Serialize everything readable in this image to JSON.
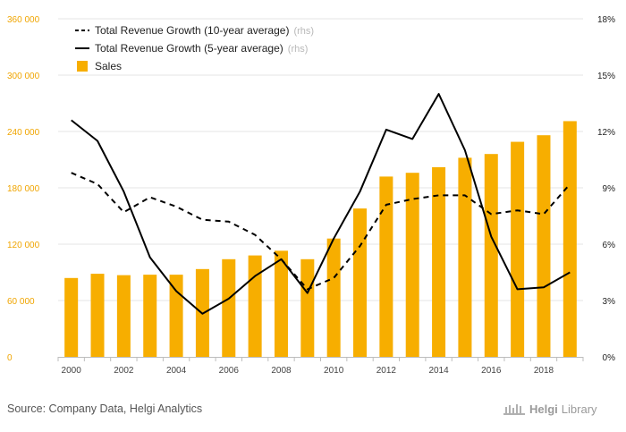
{
  "chart_data": {
    "type": "bar+line",
    "title": "",
    "categories": [
      "2000",
      "2001",
      "2002",
      "2003",
      "2004",
      "2005",
      "2006",
      "2007",
      "2008",
      "2009",
      "2010",
      "2011",
      "2012",
      "2013",
      "2014",
      "2015",
      "2016",
      "2017",
      "2018",
      "2019"
    ],
    "x_tick_labels": [
      "2000",
      "2002",
      "2004",
      "2006",
      "2008",
      "2010",
      "2012",
      "2014",
      "2016",
      "2018"
    ],
    "y_left": {
      "ylim": [
        0,
        360000
      ],
      "ticks": [
        "0",
        "60 000",
        "120 000",
        "180 000",
        "240 000",
        "300 000",
        "360 000"
      ],
      "tick_values": [
        0,
        60000,
        120000,
        180000,
        240000,
        300000,
        360000
      ]
    },
    "y_right": {
      "ylim": [
        0,
        18
      ],
      "ticks": [
        "0%",
        "3%",
        "6%",
        "9%",
        "12%",
        "15%",
        "18%"
      ],
      "tick_values": [
        0,
        3,
        6,
        9,
        12,
        15,
        18
      ]
    },
    "series": [
      {
        "name": "Sales",
        "kind": "bar",
        "axis": "left",
        "color": "#f7ae00",
        "values": [
          84000,
          88500,
          87000,
          87500,
          87500,
          93500,
          104000,
          108000,
          113000,
          104000,
          126000,
          158000,
          192000,
          196000,
          202000,
          212000,
          216000,
          229000,
          236000,
          251000
        ]
      },
      {
        "name": "Total Revenue Growth (10-year average)",
        "legend_suffix": "(rhs)",
        "kind": "line",
        "style": "dashed",
        "axis": "right",
        "color": "#000000",
        "values": [
          9.8,
          9.2,
          7.7,
          8.5,
          8.0,
          7.3,
          7.2,
          6.5,
          5.2,
          3.6,
          4.2,
          5.9,
          8.1,
          8.4,
          8.6,
          8.6,
          7.6,
          7.8,
          7.6,
          9.2
        ]
      },
      {
        "name": "Total Revenue Growth (5-year average)",
        "legend_suffix": "(rhs)",
        "kind": "line",
        "style": "solid",
        "axis": "right",
        "color": "#000000",
        "values": [
          12.6,
          11.5,
          8.8,
          5.3,
          3.5,
          2.3,
          3.1,
          4.3,
          5.2,
          3.4,
          6.3,
          8.8,
          12.1,
          11.6,
          14.0,
          11.0,
          6.4,
          3.6,
          3.7,
          4.5
        ]
      }
    ],
    "legend_position": "top-left",
    "grid": {
      "horizontal": true,
      "vertical": false
    }
  },
  "footer": {
    "source": "Source: Company Data, Helgi Analytics",
    "logo_text_bold": "Helgi",
    "logo_text_light": "Library"
  }
}
